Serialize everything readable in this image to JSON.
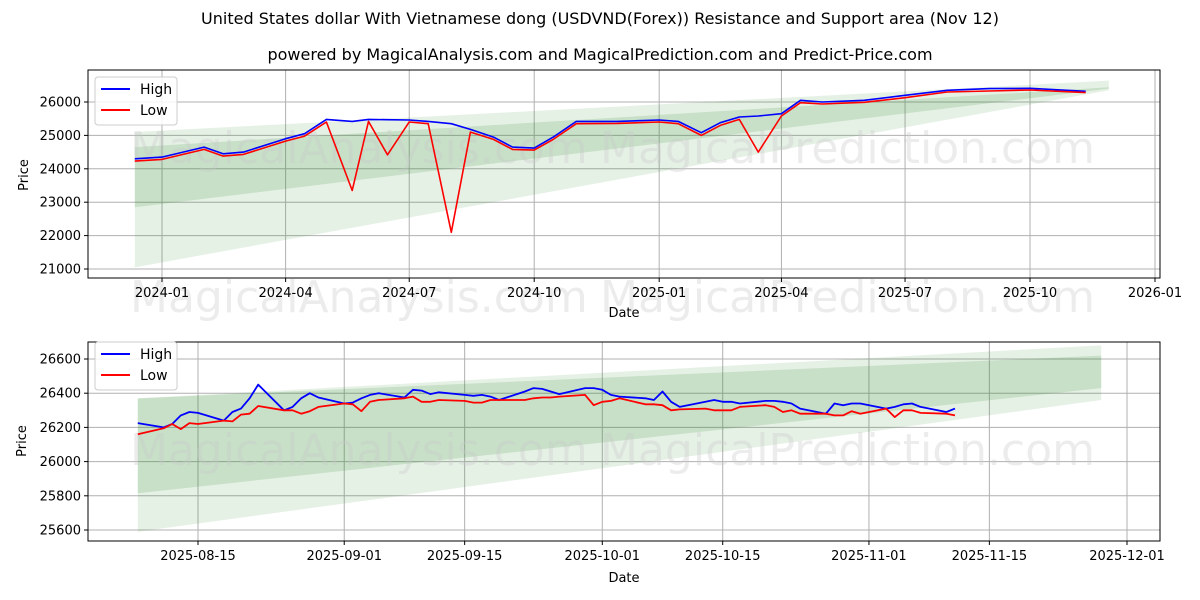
{
  "header": {
    "title": "United States dollar With Vietnamese dong (USDVND(Forex)) Resistance and Support area (Nov 12)",
    "subtitle": "powered by MagicalAnalysis.com and MagicalPrediction.com and Predict-Price.com"
  },
  "watermarks": [
    "MagicalAnalysis.com",
    "MagicalPrediction.com"
  ],
  "colors": {
    "high": "#0000ff",
    "low": "#ff0000",
    "band": "#2e8b2e"
  },
  "legend": {
    "high": "High",
    "low": "Low"
  },
  "chart_data": [
    {
      "type": "line",
      "title": "",
      "xlabel": "Date",
      "ylabel": "Price",
      "ylim": [
        20700,
        26950
      ],
      "grid": true,
      "legend_position": "upper left",
      "x_ticks": [
        "2024-01",
        "2024-04",
        "2024-07",
        "2024-10",
        "2025-01",
        "2025-04",
        "2025-07",
        "2025-10",
        "2026-01"
      ],
      "y_ticks": [
        21000,
        22000,
        23000,
        24000,
        25000,
        26000
      ],
      "x": [
        "2023-12-12",
        "2024-01-01",
        "2024-02-01",
        "2024-02-15",
        "2024-03-01",
        "2024-04-01",
        "2024-04-15",
        "2024-05-01",
        "2024-05-20",
        "2024-06-01",
        "2024-06-15",
        "2024-07-01",
        "2024-07-15",
        "2024-08-01",
        "2024-08-15",
        "2024-09-01",
        "2024-09-15",
        "2024-10-01",
        "2024-10-15",
        "2024-11-01",
        "2024-12-01",
        "2025-01-01",
        "2025-01-15",
        "2025-02-01",
        "2025-02-15",
        "2025-03-01",
        "2025-03-15",
        "2025-04-01",
        "2025-04-15",
        "2025-05-01",
        "2025-06-01",
        "2025-07-01",
        "2025-08-01",
        "2025-09-01",
        "2025-10-01",
        "2025-11-11"
      ],
      "series": [
        {
          "name": "High",
          "values": [
            24300,
            24350,
            24650,
            24450,
            24500,
            24900,
            25050,
            25480,
            25420,
            25480,
            25470,
            25460,
            25420,
            25350,
            25180,
            24950,
            24650,
            24620,
            24950,
            25420,
            25420,
            25460,
            25420,
            25080,
            25380,
            25550,
            25580,
            25650,
            26050,
            26000,
            26050,
            26200,
            26350,
            26400,
            26410,
            26320
          ]
        },
        {
          "name": "Low",
          "values": [
            24230,
            24280,
            24580,
            24380,
            24430,
            24830,
            24980,
            25400,
            23350,
            25420,
            24420,
            25400,
            25350,
            22100,
            25100,
            24880,
            24580,
            24560,
            24880,
            25350,
            25360,
            25400,
            25350,
            25000,
            25300,
            25480,
            24500,
            25580,
            25980,
            25940,
            25990,
            26130,
            26300,
            26330,
            26360,
            26280
          ]
        },
        {
          "name": "Resistance band (outer upper)",
          "x": [
            "2023-12-12",
            "2025-11-28"
          ],
          "values": [
            25100,
            26640
          ]
        },
        {
          "name": "Resistance band (inner upper)",
          "x": [
            "2023-12-12",
            "2025-11-28"
          ],
          "values": [
            24650,
            26440
          ]
        },
        {
          "name": "Support band (inner lower)",
          "x": [
            "2023-12-12",
            "2025-11-28"
          ],
          "values": [
            22850,
            26400
          ]
        },
        {
          "name": "Support band (outer lower)",
          "x": [
            "2023-12-12",
            "2025-11-28"
          ],
          "values": [
            21050,
            26350
          ]
        }
      ]
    },
    {
      "type": "line",
      "title": "",
      "xlabel": "Date",
      "ylabel": "Price",
      "ylim": [
        25530,
        26730
      ],
      "grid": true,
      "legend_position": "upper left",
      "x_ticks": [
        "2025-08-15",
        "2025-09-01",
        "2025-09-15",
        "2025-10-01",
        "2025-10-15",
        "2025-11-01",
        "2025-11-15",
        "2025-12-01"
      ],
      "y_ticks": [
        25600,
        25800,
        26000,
        26200,
        26400,
        26600
      ],
      "x": [
        "2025-08-08",
        "2025-08-11",
        "2025-08-12",
        "2025-08-13",
        "2025-08-14",
        "2025-08-15",
        "2025-08-18",
        "2025-08-19",
        "2025-08-20",
        "2025-08-21",
        "2025-08-22",
        "2025-08-25",
        "2025-08-26",
        "2025-08-27",
        "2025-08-28",
        "2025-08-29",
        "2025-09-01",
        "2025-09-02",
        "2025-09-03",
        "2025-09-04",
        "2025-09-05",
        "2025-09-08",
        "2025-09-09",
        "2025-09-10",
        "2025-09-11",
        "2025-09-12",
        "2025-09-15",
        "2025-09-16",
        "2025-09-17",
        "2025-09-18",
        "2025-09-19",
        "2025-09-22",
        "2025-09-23",
        "2025-09-24",
        "2025-09-25",
        "2025-09-26",
        "2025-09-29",
        "2025-09-30",
        "2025-10-01",
        "2025-10-02",
        "2025-10-03",
        "2025-10-06",
        "2025-10-07",
        "2025-10-08",
        "2025-10-09",
        "2025-10-10",
        "2025-10-13",
        "2025-10-14",
        "2025-10-15",
        "2025-10-16",
        "2025-10-17",
        "2025-10-20",
        "2025-10-21",
        "2025-10-22",
        "2025-10-23",
        "2025-10-24",
        "2025-10-27",
        "2025-10-28",
        "2025-10-29",
        "2025-10-30",
        "2025-10-31",
        "2025-11-03",
        "2025-11-04",
        "2025-11-05",
        "2025-11-06",
        "2025-11-07",
        "2025-11-10",
        "2025-11-11"
      ],
      "series": [
        {
          "name": "High",
          "values": [
            26225,
            26200,
            26220,
            26270,
            26290,
            26285,
            26240,
            26290,
            26310,
            26370,
            26450,
            26300,
            26320,
            26370,
            26400,
            26375,
            26340,
            26345,
            26370,
            26390,
            26400,
            26375,
            26420,
            26415,
            26395,
            26405,
            26390,
            26385,
            26390,
            26380,
            26360,
            26410,
            26430,
            26425,
            26410,
            26395,
            26430,
            26430,
            26420,
            26390,
            26380,
            26370,
            26360,
            26410,
            26350,
            26320,
            26350,
            26360,
            26350,
            26350,
            26340,
            26355,
            26355,
            26350,
            26340,
            26310,
            26280,
            26340,
            26330,
            26340,
            26340,
            26310,
            26320,
            26335,
            26340,
            26320,
            26290,
            26310
          ]
        },
        {
          "name": "Low",
          "values": [
            26160,
            26195,
            26220,
            26190,
            26225,
            26220,
            26240,
            26235,
            26275,
            26280,
            26325,
            26300,
            26300,
            26280,
            26295,
            26320,
            26340,
            26335,
            26295,
            26350,
            26360,
            26370,
            26380,
            26350,
            26350,
            26360,
            26355,
            26345,
            26345,
            26360,
            26360,
            26360,
            26370,
            26375,
            26375,
            26380,
            26390,
            26330,
            26350,
            26355,
            26370,
            26335,
            26335,
            26330,
            26300,
            26305,
            26310,
            26300,
            26300,
            26300,
            26320,
            26330,
            26320,
            26290,
            26300,
            26280,
            26280,
            26270,
            26270,
            26295,
            26280,
            26310,
            26260,
            26300,
            26300,
            26285,
            26280,
            26270
          ]
        },
        {
          "name": "Resistance band (outer upper)",
          "x": [
            "2025-08-08",
            "2025-11-28"
          ],
          "values": [
            26370,
            26680
          ]
        },
        {
          "name": "Resistance band (inner upper)",
          "x": [
            "2025-08-08",
            "2025-11-28"
          ],
          "values": [
            26370,
            26620
          ]
        },
        {
          "name": "Support band (inner lower)",
          "x": [
            "2025-08-08",
            "2025-11-28"
          ],
          "values": [
            25815,
            26430
          ]
        },
        {
          "name": "Support band (outer lower)",
          "x": [
            "2025-08-08",
            "2025-11-28"
          ],
          "values": [
            25590,
            26360
          ]
        }
      ]
    }
  ]
}
